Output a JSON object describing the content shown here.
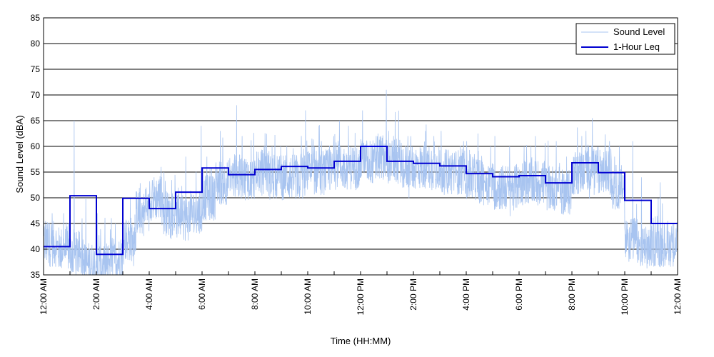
{
  "chart_data": {
    "type": "line",
    "title": "",
    "xlabel": "Time (HH:MM)",
    "ylabel": "Sound Level (dBA)",
    "xlim": [
      0,
      24
    ],
    "ylim": [
      35,
      85
    ],
    "y_ticks": [
      35,
      40,
      45,
      50,
      55,
      60,
      65,
      70,
      75,
      80,
      85
    ],
    "x_ticks": [
      0,
      2,
      4,
      6,
      8,
      10,
      12,
      14,
      16,
      18,
      20,
      22,
      24
    ],
    "x_tick_labels": [
      "12:00 AM",
      "2:00 AM",
      "4:00 AM",
      "6:00 AM",
      "8:00 AM",
      "10:00 AM",
      "12:00 PM",
      "2:00 PM",
      "4:00 PM",
      "6:00 PM",
      "8:00 PM",
      "10:00 PM",
      "12:00 AM"
    ],
    "grid": "horizontal",
    "legend_position": "top-right",
    "series": [
      {
        "name": "Sound Level",
        "color": "#a8c4f0",
        "hour_start": [
          0,
          0.5,
          1,
          1.5,
          2,
          2.5,
          3,
          3.5,
          4,
          4.5,
          5,
          5.5,
          6,
          6.5,
          7,
          7.5,
          8,
          8.5,
          9,
          9.5,
          10,
          10.5,
          11,
          11.5,
          12,
          12.5,
          13,
          13.5,
          14,
          14.5,
          15,
          15.5,
          16,
          16.5,
          17,
          17.5,
          18,
          18.5,
          19,
          19.5,
          20,
          20.5,
          21,
          21.5,
          22,
          22.5,
          23,
          23.5
        ],
        "typical_level": [
          41,
          40,
          39,
          37,
          37,
          38,
          42,
          47,
          50,
          47,
          46,
          47,
          50,
          53,
          54,
          54,
          55,
          54,
          54,
          54,
          55,
          55,
          56,
          56,
          57,
          58,
          57,
          56,
          56,
          56,
          55,
          55,
          54,
          53,
          52,
          52,
          53,
          53,
          52,
          51,
          55,
          56,
          55,
          52,
          42,
          40,
          41,
          41
        ],
        "peak_level": [
          47,
          47,
          65,
          50,
          47,
          45,
          50,
          52,
          56,
          55,
          58,
          64,
          58,
          63,
          68,
          62,
          60,
          60,
          60,
          67,
          64,
          62,
          65,
          64,
          67,
          71,
          63,
          62,
          63,
          62,
          63,
          61,
          61,
          60,
          62,
          60,
          60,
          62,
          61,
          58,
          62,
          63,
          61,
          58,
          61,
          54,
          53,
          45
        ]
      },
      {
        "name": "1-Hour Leq",
        "color": "#0000d0",
        "x": [
          0,
          1,
          2,
          3,
          4,
          5,
          6,
          7,
          8,
          9,
          10,
          11,
          12,
          13,
          14,
          15,
          16,
          17,
          18,
          19,
          20,
          21,
          22,
          23
        ],
        "values": [
          40.5,
          50.4,
          39,
          49.9,
          47.9,
          51.1,
          55.8,
          54.5,
          55.5,
          56.1,
          55.8,
          57.1,
          60,
          57.1,
          56.7,
          56.2,
          54.7,
          54.1,
          54.3,
          52.9,
          56.8,
          54.9,
          49.5,
          45
        ]
      }
    ]
  }
}
